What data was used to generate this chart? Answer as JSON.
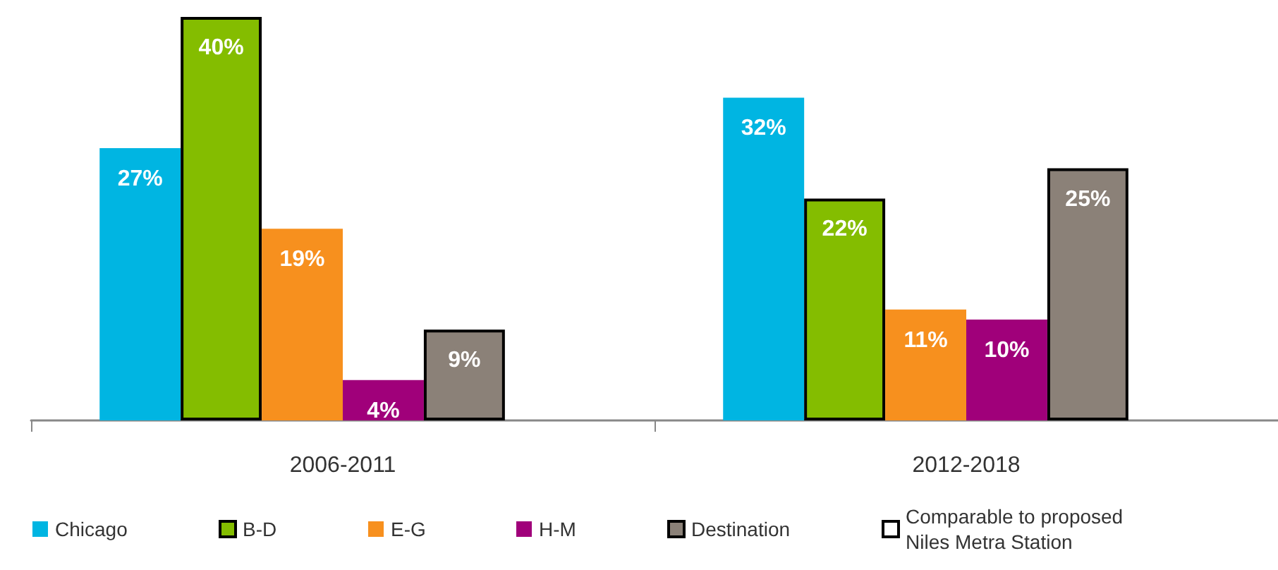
{
  "chart_data": {
    "type": "bar",
    "categories": [
      "2006-2011",
      "2012-2018"
    ],
    "series": [
      {
        "name": "Chicago",
        "color": "#00b5e2",
        "values": [
          27,
          32
        ],
        "value_labels": [
          "27%",
          "32%"
        ]
      },
      {
        "name": "B-D",
        "color": "#84bd00",
        "values": [
          40,
          22
        ],
        "value_labels": [
          "40%",
          "22%"
        ],
        "line_style": "solid"
      },
      {
        "name": "E-G",
        "color": "#f7901e",
        "values": [
          19,
          11
        ],
        "value_labels": [
          "19%",
          "11%"
        ]
      },
      {
        "name": "H-M",
        "color": "#a0007a",
        "values": [
          4,
          10
        ],
        "value_labels": [
          "4%",
          "10%"
        ]
      },
      {
        "name": "Destination",
        "color": "#8b8178",
        "values": [
          9,
          25
        ],
        "value_labels": [
          "9%",
          "25%"
        ],
        "line_style": "solid"
      },
      {
        "name": "Comparable to proposed Niles Metra Station",
        "color": "#ffffff",
        "values": [
          null,
          null
        ],
        "line_style": "solid"
      }
    ],
    "grid": false,
    "legend": "bottom"
  }
}
